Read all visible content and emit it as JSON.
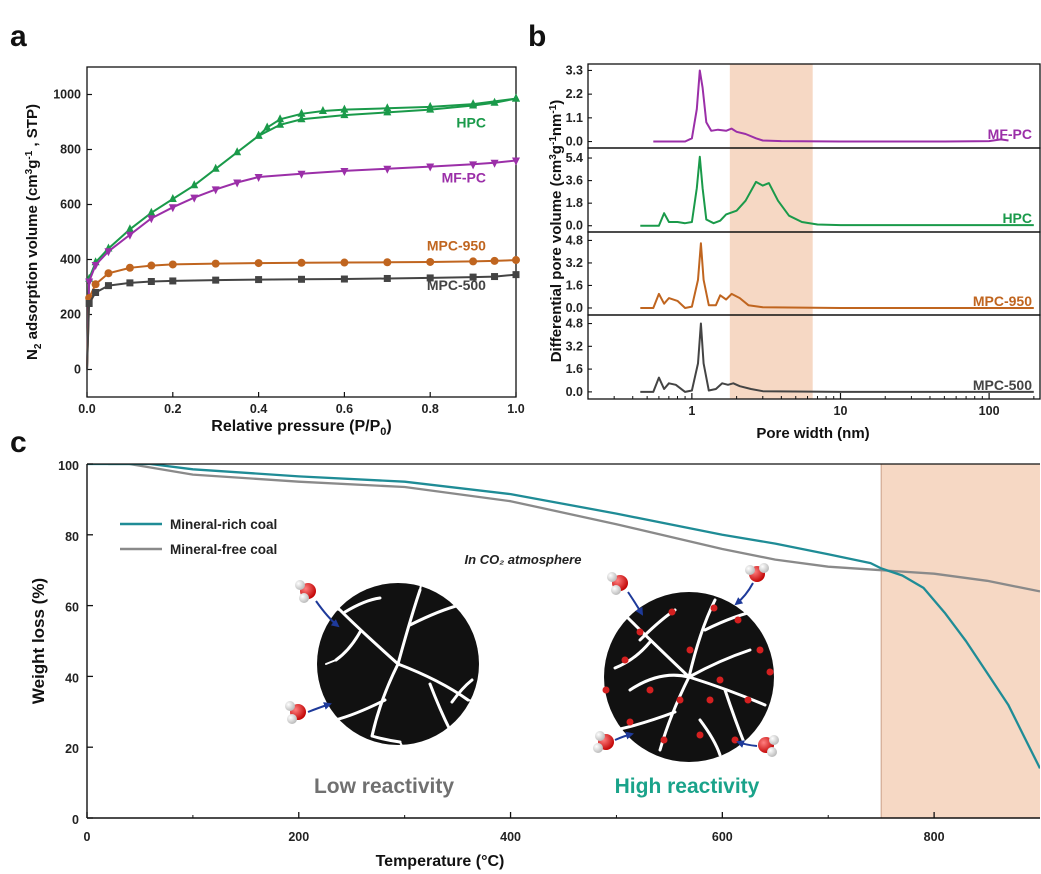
{
  "panels": {
    "a": "a",
    "b": "b",
    "c": "c"
  },
  "chart_data": [
    {
      "type": "line",
      "panel": "a",
      "xlabel": "Relative pressure (P/P0)",
      "ylabel": "N2 adsorption volume (cm3g-1, STP)",
      "xlim": [
        0,
        1.0
      ],
      "ylim": [
        -100,
        1100
      ],
      "xticks": [
        "0.0",
        "0.2",
        "0.4",
        "0.6",
        "0.8",
        "1.0"
      ],
      "yticks": [
        "0",
        "200",
        "400",
        "600",
        "800",
        "1000"
      ],
      "series": [
        {
          "name": "HPC",
          "color": "#1a9a4a",
          "marker": "triangle-up",
          "adsorption": [
            [
              0.0,
              0
            ],
            [
              0.005,
              330
            ],
            [
              0.02,
              390
            ],
            [
              0.05,
              440
            ],
            [
              0.1,
              510
            ],
            [
              0.15,
              570
            ],
            [
              0.2,
              620
            ],
            [
              0.25,
              670
            ],
            [
              0.3,
              730
            ],
            [
              0.35,
              790
            ],
            [
              0.4,
              850
            ],
            [
              0.45,
              890
            ],
            [
              0.5,
              910
            ],
            [
              0.6,
              925
            ],
            [
              0.7,
              935
            ],
            [
              0.8,
              945
            ],
            [
              0.9,
              960
            ],
            [
              0.95,
              970
            ],
            [
              1.0,
              985
            ]
          ],
          "desorption": [
            [
              1.0,
              985
            ],
            [
              0.9,
              965
            ],
            [
              0.8,
              955
            ],
            [
              0.7,
              950
            ],
            [
              0.6,
              945
            ],
            [
              0.55,
              940
            ],
            [
              0.5,
              930
            ],
            [
              0.45,
              910
            ],
            [
              0.42,
              880
            ],
            [
              0.4,
              850
            ]
          ]
        },
        {
          "name": "MF-PC",
          "color": "#9b2fa8",
          "marker": "triangle-down",
          "adsorption": [
            [
              0.0,
              0
            ],
            [
              0.005,
              320
            ],
            [
              0.02,
              380
            ],
            [
              0.05,
              430
            ],
            [
              0.1,
              490
            ],
            [
              0.15,
              550
            ],
            [
              0.2,
              590
            ],
            [
              0.25,
              625
            ],
            [
              0.3,
              655
            ],
            [
              0.35,
              680
            ],
            [
              0.4,
              700
            ],
            [
              0.5,
              712
            ],
            [
              0.6,
              722
            ],
            [
              0.7,
              730
            ],
            [
              0.8,
              738
            ],
            [
              0.9,
              746
            ],
            [
              0.95,
              752
            ],
            [
              1.0,
              760
            ]
          ],
          "desorption": []
        },
        {
          "name": "MPC-950",
          "color": "#c0651f",
          "marker": "circle",
          "adsorption": [
            [
              0.0,
              0
            ],
            [
              0.005,
              260
            ],
            [
              0.02,
              310
            ],
            [
              0.05,
              350
            ],
            [
              0.1,
              370
            ],
            [
              0.15,
              378
            ],
            [
              0.2,
              382
            ],
            [
              0.3,
              385
            ],
            [
              0.4,
              387
            ],
            [
              0.5,
              388
            ],
            [
              0.6,
              389
            ],
            [
              0.7,
              390
            ],
            [
              0.8,
              391
            ],
            [
              0.9,
              393
            ],
            [
              0.95,
              395
            ],
            [
              1.0,
              398
            ]
          ],
          "desorption": []
        },
        {
          "name": "MPC-500",
          "color": "#444444",
          "marker": "square",
          "adsorption": [
            [
              0.0,
              0
            ],
            [
              0.005,
              240
            ],
            [
              0.02,
              280
            ],
            [
              0.05,
              305
            ],
            [
              0.1,
              315
            ],
            [
              0.15,
              320
            ],
            [
              0.2,
              322
            ],
            [
              0.3,
              325
            ],
            [
              0.4,
              327
            ],
            [
              0.5,
              328
            ],
            [
              0.6,
              329
            ],
            [
              0.7,
              331
            ],
            [
              0.8,
              333
            ],
            [
              0.9,
              336
            ],
            [
              0.95,
              338
            ],
            [
              1.0,
              345
            ]
          ],
          "desorption": []
        }
      ]
    },
    {
      "type": "line",
      "panel": "b",
      "xlabel": "Pore width (nm)",
      "ylabel": "Differential pore volume (cm3g-1nm-1)",
      "xscale": "log",
      "xlim": [
        0.2,
        220
      ],
      "xticks": [
        "1",
        "10",
        "100"
      ],
      "highlight_range": [
        1.8,
        6.5
      ],
      "highlight_color": "#f6d8c4",
      "subplots": [
        {
          "name": "MF-PC",
          "color": "#9b2fa8",
          "ylim": [
            -0.3,
            3.6
          ],
          "yticks": [
            "0.0",
            "1.1",
            "2.2",
            "3.3"
          ],
          "points": [
            [
              0.55,
              0
            ],
            [
              0.9,
              0
            ],
            [
              1.0,
              0.15
            ],
            [
              1.08,
              1.5
            ],
            [
              1.13,
              3.3
            ],
            [
              1.18,
              2.5
            ],
            [
              1.25,
              0.9
            ],
            [
              1.35,
              0.5
            ],
            [
              1.5,
              0.55
            ],
            [
              1.7,
              0.5
            ],
            [
              1.85,
              0.6
            ],
            [
              2.0,
              0.45
            ],
            [
              2.3,
              0.35
            ],
            [
              2.7,
              0.15
            ],
            [
              3.0,
              0.05
            ],
            [
              4,
              0.02
            ],
            [
              10,
              0
            ],
            [
              50,
              0
            ],
            [
              100,
              0.02
            ],
            [
              120,
              0.1
            ],
            [
              135,
              0.05
            ]
          ]
        },
        {
          "name": "HPC",
          "color": "#1a9a4a",
          "ylim": [
            -0.5,
            6.2
          ],
          "yticks": [
            "0.0",
            "1.8",
            "3.6",
            "5.4"
          ],
          "points": [
            [
              0.45,
              0
            ],
            [
              0.6,
              0
            ],
            [
              0.65,
              1.0
            ],
            [
              0.7,
              0.3
            ],
            [
              0.8,
              0.3
            ],
            [
              0.9,
              0.2
            ],
            [
              1.0,
              0.3
            ],
            [
              1.08,
              3.0
            ],
            [
              1.13,
              5.5
            ],
            [
              1.18,
              3.0
            ],
            [
              1.25,
              0.5
            ],
            [
              1.4,
              0.2
            ],
            [
              1.55,
              0.4
            ],
            [
              1.7,
              0.9
            ],
            [
              2.0,
              1.2
            ],
            [
              2.3,
              2.0
            ],
            [
              2.7,
              3.5
            ],
            [
              3.0,
              3.2
            ],
            [
              3.3,
              3.4
            ],
            [
              3.8,
              2.0
            ],
            [
              4.5,
              0.8
            ],
            [
              5.5,
              0.3
            ],
            [
              7,
              0.1
            ],
            [
              10,
              0.05
            ],
            [
              100,
              0.05
            ],
            [
              200,
              0.05
            ]
          ]
        },
        {
          "name": "MPC-950",
          "color": "#c0651f",
          "ylim": [
            -0.5,
            5.4
          ],
          "yticks": [
            "0.0",
            "1.6",
            "3.2",
            "4.8"
          ],
          "points": [
            [
              0.45,
              0
            ],
            [
              0.55,
              0
            ],
            [
              0.6,
              1.0
            ],
            [
              0.65,
              0.3
            ],
            [
              0.7,
              0.7
            ],
            [
              0.8,
              0.5
            ],
            [
              0.9,
              0
            ],
            [
              1.0,
              0.1
            ],
            [
              1.1,
              2.0
            ],
            [
              1.15,
              4.6
            ],
            [
              1.2,
              2.0
            ],
            [
              1.3,
              0.2
            ],
            [
              1.45,
              0.2
            ],
            [
              1.55,
              0.9
            ],
            [
              1.7,
              0.6
            ],
            [
              1.85,
              1.0
            ],
            [
              2.1,
              0.7
            ],
            [
              2.4,
              0.2
            ],
            [
              3,
              0.05
            ],
            [
              10,
              0
            ],
            [
              200,
              0
            ]
          ]
        },
        {
          "name": "MPC-500",
          "color": "#444444",
          "ylim": [
            -0.5,
            5.4
          ],
          "yticks": [
            "0.0",
            "1.6",
            "3.2",
            "4.8"
          ],
          "points": [
            [
              0.45,
              0
            ],
            [
              0.55,
              0
            ],
            [
              0.6,
              1.0
            ],
            [
              0.65,
              0.2
            ],
            [
              0.7,
              0.6
            ],
            [
              0.78,
              0.5
            ],
            [
              0.9,
              0
            ],
            [
              1.0,
              0.1
            ],
            [
              1.1,
              2.0
            ],
            [
              1.15,
              4.8
            ],
            [
              1.2,
              2.0
            ],
            [
              1.3,
              0.1
            ],
            [
              1.45,
              0.2
            ],
            [
              1.6,
              0.6
            ],
            [
              1.75,
              0.5
            ],
            [
              1.9,
              0.6
            ],
            [
              2.1,
              0.4
            ],
            [
              2.5,
              0.2
            ],
            [
              3,
              0.05
            ],
            [
              10,
              0
            ],
            [
              200,
              0
            ]
          ]
        }
      ]
    },
    {
      "type": "line",
      "panel": "c",
      "xlabel": "Temperature (°C)",
      "ylabel": "Weight loss (%)",
      "xlim": [
        0,
        900
      ],
      "ylim": [
        0,
        100
      ],
      "xticks": [
        "0",
        "200",
        "400",
        "600",
        "800"
      ],
      "yticks": [
        "0",
        "20",
        "40",
        "60",
        "80",
        "100"
      ],
      "highlight_range": [
        750,
        900
      ],
      "highlight_color": "#f6d8c4",
      "annotation": "In CO₂ atmosphere",
      "legend": "top-left",
      "series": [
        {
          "name": "Mineral-rich coal",
          "color": "#1f8c96",
          "points": [
            [
              0,
              100
            ],
            [
              20,
              100
            ],
            [
              60,
              100
            ],
            [
              100,
              98.5
            ],
            [
              200,
              96.5
            ],
            [
              300,
              95
            ],
            [
              400,
              91.5
            ],
            [
              500,
              86
            ],
            [
              600,
              80
            ],
            [
              650,
              77.5
            ],
            [
              700,
              74.5
            ],
            [
              740,
              72
            ],
            [
              750,
              70.5
            ],
            [
              770,
              68.5
            ],
            [
              790,
              65
            ],
            [
              810,
              58
            ],
            [
              830,
              50
            ],
            [
              850,
              41
            ],
            [
              870,
              32
            ],
            [
              885,
              23
            ],
            [
              900,
              14
            ]
          ]
        },
        {
          "name": "Mineral-free coal",
          "color": "#8a8a8a",
          "points": [
            [
              20,
              100
            ],
            [
              40,
              100
            ],
            [
              60,
              99
            ],
            [
              100,
              97
            ],
            [
              200,
              95
            ],
            [
              300,
              93.5
            ],
            [
              400,
              89.5
            ],
            [
              500,
              83
            ],
            [
              600,
              76
            ],
            [
              650,
              73
            ],
            [
              700,
              71
            ],
            [
              750,
              70
            ],
            [
              800,
              69
            ],
            [
              850,
              67
            ],
            [
              900,
              64
            ]
          ]
        }
      ],
      "illustrations": {
        "left_label": "Low reactivity",
        "right_label": "High reactivity",
        "left_label_color": "#707070",
        "right_label_color": "#1aa38a"
      }
    }
  ]
}
